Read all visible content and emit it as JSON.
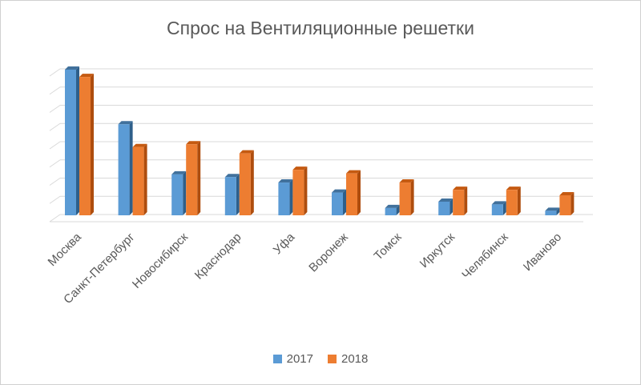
{
  "chart_data": {
    "type": "bar",
    "title": "Спрос на Вентиляционные решетки",
    "categories": [
      "Москва",
      "Санкт-Петербург",
      "Новосибирск",
      "Краснодар",
      "Уфа",
      "Воронеж",
      "Томск",
      "Иркутск",
      "Челябинск",
      "Иваново"
    ],
    "series": [
      {
        "name": "2017",
        "values": [
          8.0,
          5.0,
          2.25,
          2.1,
          1.8,
          1.25,
          0.4,
          0.75,
          0.6,
          0.25
        ]
      },
      {
        "name": "2018",
        "values": [
          7.6,
          3.75,
          3.9,
          3.4,
          2.5,
          2.3,
          1.8,
          1.4,
          1.4,
          1.1
        ]
      }
    ],
    "ylim": [
      0,
      8
    ],
    "grid": true,
    "legend": "bottom",
    "colors": {
      "2017": "#5b9bd5",
      "2018": "#ed7d31"
    }
  }
}
